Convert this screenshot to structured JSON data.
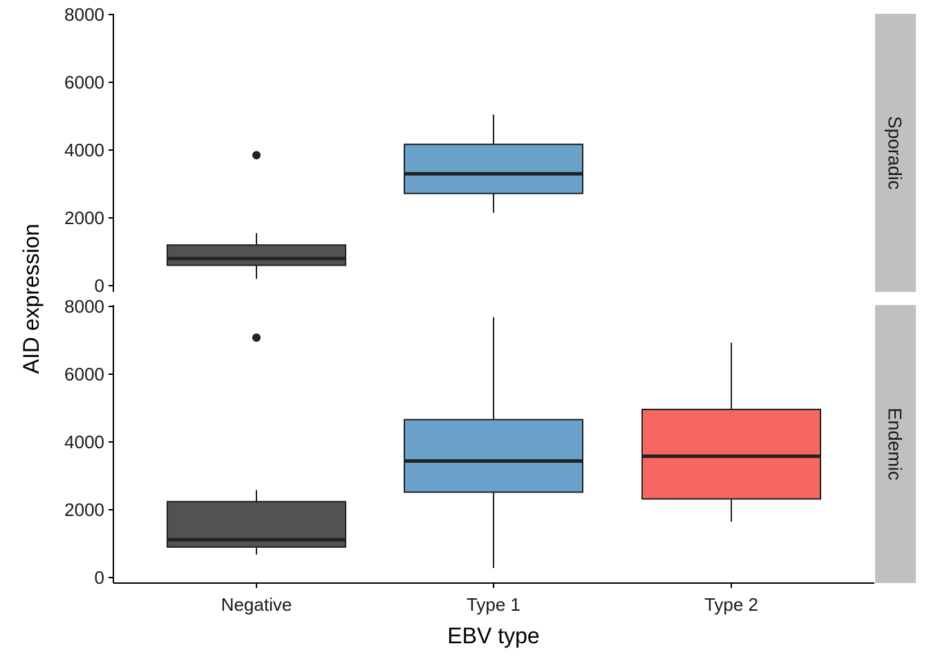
{
  "chart_data": {
    "type": "boxplot",
    "xlabel": "EBV type",
    "ylabel": "AID expression",
    "categories": [
      "Negative",
      "Type 1",
      "Type 2"
    ],
    "ylim": [
      0,
      8000
    ],
    "yticks": [
      0,
      2000,
      4000,
      6000,
      8000
    ],
    "colors": {
      "Negative": "#525252",
      "Type 1": "#6ba2cb",
      "Type 2": "#f5675f"
    },
    "facet_strip_color": "#c0c0c0",
    "grid": false,
    "legend": "none",
    "facets": [
      {
        "label": "Sporadic",
        "boxes": [
          {
            "category": "Negative",
            "whisker_low": 200,
            "q1": 600,
            "median": 800,
            "q3": 1200,
            "whisker_high": 1550,
            "outliers": [
              3850
            ]
          },
          {
            "category": "Type 1",
            "whisker_low": 2150,
            "q1": 2720,
            "median": 3300,
            "q3": 4170,
            "whisker_high": 5050,
            "outliers": []
          }
        ]
      },
      {
        "label": "Endemic",
        "boxes": [
          {
            "category": "Negative",
            "whisker_low": 680,
            "q1": 900,
            "median": 1120,
            "q3": 2240,
            "whisker_high": 2580,
            "outliers": [
              7080
            ]
          },
          {
            "category": "Type 1",
            "whisker_low": 280,
            "q1": 2520,
            "median": 3440,
            "q3": 4660,
            "whisker_high": 7680,
            "outliers": []
          },
          {
            "category": "Type 2",
            "whisker_low": 1650,
            "q1": 2320,
            "median": 3580,
            "q3": 4960,
            "whisker_high": 6930,
            "outliers": []
          }
        ]
      }
    ]
  }
}
